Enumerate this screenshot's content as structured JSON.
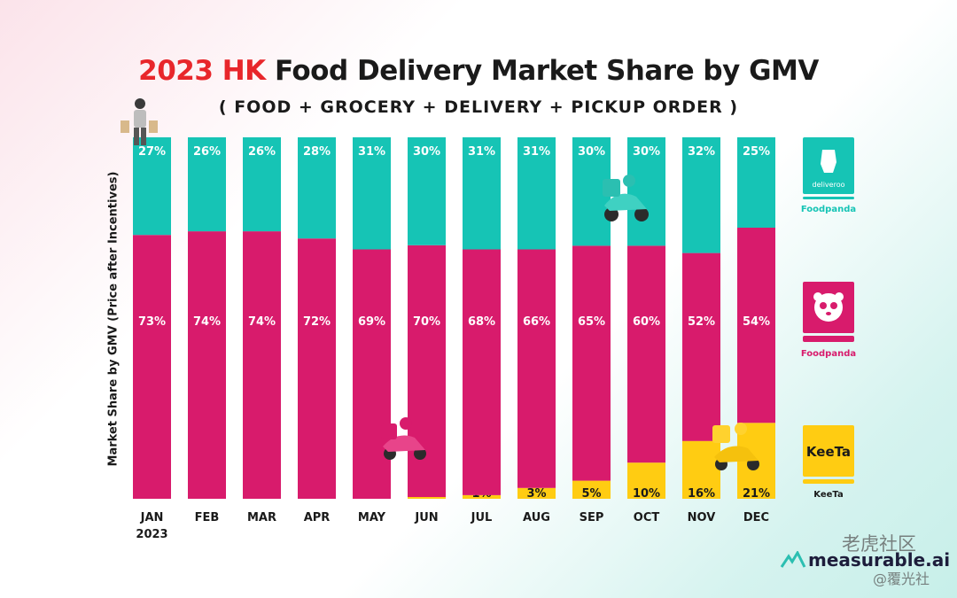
{
  "title_part1": "2023 HK",
  "title_part2": "Food Delivery Market Share by GMV",
  "subtitle": "( FOOD + GROCERY + DELIVERY + PICKUP ORDER )",
  "watermark": "measurable.ai",
  "brand": "measurable.ai",
  "overlay_text_1": "老虎社区",
  "overlay_text_2": "@覆光社",
  "legend": [
    {
      "logo_text": "deliveroo",
      "name": "Deliveroo",
      "color": "#16c4b5"
    },
    {
      "logo_text": "panda",
      "name": "Foodpanda",
      "color": "#d81b6c"
    },
    {
      "logo_text": "KeeTa",
      "name": "KeeTa",
      "color": "#ffcc12"
    }
  ],
  "colors": {
    "deliveroo": "#16c4b5",
    "foodpanda": "#d81b6c",
    "keeta": "#ffcc12",
    "title_accent": "#e8262b"
  },
  "chart_data": {
    "type": "bar",
    "stacked": true,
    "percent": true,
    "title": "2023 HK Food Delivery Market Share by GMV",
    "subtitle": "( FOOD + GROCERY + DELIVERY + PICKUP ORDER )",
    "xlabel": "",
    "ylabel": "Market Share by GMV (Price after Incentives)",
    "ylim": [
      0,
      100
    ],
    "categories": [
      "JAN",
      "FEB",
      "MAR",
      "APR",
      "MAY",
      "JUN",
      "JUL",
      "AUG",
      "SEP",
      "OCT",
      "NOV",
      "DEC"
    ],
    "first_category_sub": "2023",
    "series": [
      {
        "name": "KeeTa",
        "values": [
          0,
          0,
          0,
          0,
          0,
          0.5,
          1,
          3,
          5,
          10,
          16,
          21
        ],
        "labels": [
          "",
          "",
          "",
          "",
          "",
          "",
          "1%",
          "3%",
          "5%",
          "10%",
          "16%",
          "21%"
        ]
      },
      {
        "name": "Foodpanda",
        "values": [
          73,
          74,
          74,
          72,
          69,
          70,
          68,
          66,
          65,
          60,
          52,
          54
        ],
        "labels": [
          "73%",
          "74%",
          "74%",
          "72%",
          "69%",
          "70%",
          "68%",
          "66%",
          "65%",
          "60%",
          "52%",
          "54%"
        ]
      },
      {
        "name": "Deliveroo",
        "values": [
          27,
          26,
          26,
          28,
          31,
          30,
          31,
          31,
          30,
          30,
          32,
          25
        ],
        "labels": [
          "27%",
          "26%",
          "26%",
          "28%",
          "31%",
          "30%",
          "31%",
          "31%",
          "30%",
          "30%",
          "32%",
          "25%"
        ]
      }
    ],
    "grid": false,
    "legend_position": "right"
  }
}
